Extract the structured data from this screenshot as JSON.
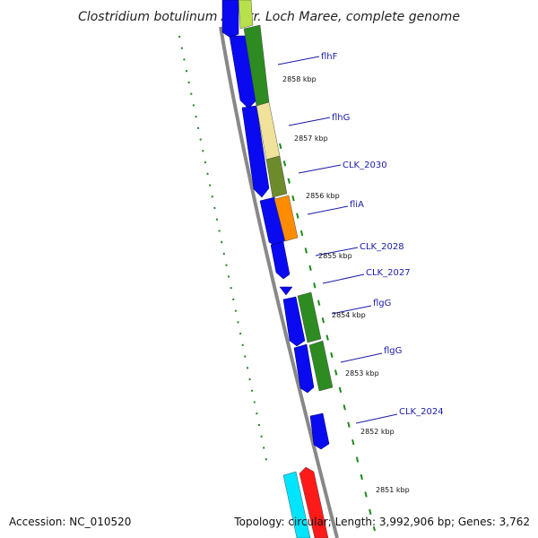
{
  "title": "Clostridium botulinum A3 str. Loch Maree, complete genome",
  "accession": "Accession: NC_010520",
  "topology": "Topology: circular; Length: 3,992,906 bp; Genes: 3,762",
  "ticks": [
    "2858 kbp",
    "2857 kbp",
    "2856 kbp",
    "2855 kbp",
    "2854 kbp",
    "2853 kbp",
    "2852 kbp",
    "2851 kbp"
  ],
  "gene_labels": [
    "flhF",
    "flhG",
    "CLK_2030",
    "fliA",
    "CLK_2028",
    "CLK_2027",
    "flgG",
    "flgG",
    "CLK_2024"
  ],
  "colors": {
    "cds": "#0a0af0",
    "green": "#2e8b22",
    "pale_yellow": "#f0e29a",
    "olive": "#6e8b2c",
    "orange": "#ff8c00",
    "lime": "#b7e04a",
    "cyan": "#00e5ff",
    "red": "#ff1a1a",
    "backbone": "#888888",
    "dots": "#1b8a1b",
    "label": "#1a1aa8"
  }
}
